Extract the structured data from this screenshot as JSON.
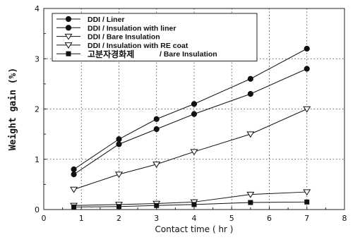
{
  "chart_data": {
    "type": "line",
    "xlabel": "Contact time ( hr )",
    "ylabel": "Weight gain (%)",
    "xlim": [
      0,
      8
    ],
    "ylim": [
      0,
      4
    ],
    "x_ticks": [
      "0",
      "1",
      "2",
      "3",
      "4",
      "5",
      "6",
      "7",
      "8"
    ],
    "y_ticks": [
      "0",
      "1",
      "2",
      "3",
      "4"
    ],
    "grid": true,
    "legend_position": "top-left",
    "series": [
      {
        "name": "DDI / Liner",
        "marker": "filled-circle",
        "x": [
          0.8,
          2,
          3,
          4,
          5.5,
          7
        ],
        "y": [
          0.8,
          1.4,
          1.8,
          2.1,
          2.6,
          3.2
        ]
      },
      {
        "name": "DDI / Insulation with liner",
        "marker": "filled-circle",
        "x": [
          0.8,
          2,
          3,
          4,
          5.5,
          7
        ],
        "y": [
          0.7,
          1.3,
          1.6,
          1.9,
          2.3,
          2.8
        ]
      },
      {
        "name": "DDI / Bare Insulation",
        "marker": "open-triangle-down",
        "x": [
          0.8,
          2,
          3,
          4,
          5.5,
          7
        ],
        "y": [
          0.4,
          0.7,
          0.9,
          1.15,
          1.5,
          2.0
        ]
      },
      {
        "name": "DDI / Insulation with RE coat",
        "marker": "open-triangle-down",
        "x": [
          0.8,
          2,
          3,
          4,
          5.5,
          7
        ],
        "y": [
          0.08,
          0.1,
          0.12,
          0.15,
          0.3,
          0.35
        ]
      },
      {
        "name_prefix": "고분자경화제",
        "name_suffix": "/ Bare Insulation",
        "marker": "filled-square",
        "x": [
          0.8,
          2,
          3,
          4,
          5.5,
          7
        ],
        "y": [
          0.05,
          0.06,
          0.08,
          0.1,
          0.14,
          0.15
        ]
      }
    ]
  }
}
